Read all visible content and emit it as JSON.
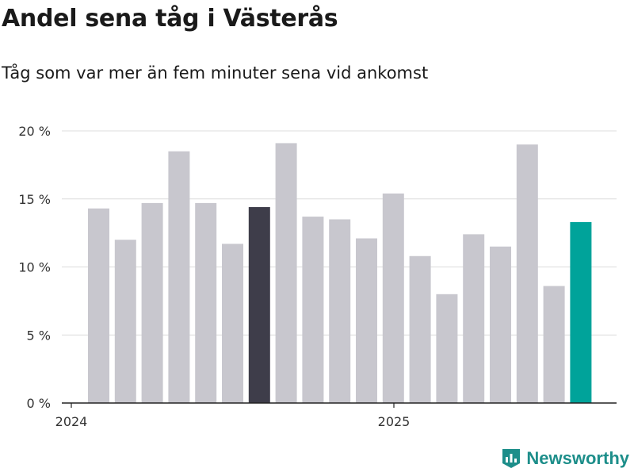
{
  "header": {
    "title": "Andel sena tåg i Västerås",
    "subtitle": "Tåg som var mer än fem minuter sena vid ankomst"
  },
  "brand": {
    "name": "Newsworthy",
    "icon": "newsworthy-logo-icon",
    "color": "#1d8e8a"
  },
  "chart_data": {
    "type": "bar",
    "title": "Andel sena tåg i Västerås",
    "subtitle": "Tåg som var mer än fem minuter sena vid ankomst",
    "x_tick_labels": [
      "2024",
      "2025"
    ],
    "y_ticks": [
      0,
      5,
      10,
      15,
      20
    ],
    "y_tick_labels": [
      "0 %",
      "5 %",
      "10 %",
      "15 %",
      "20 %"
    ],
    "ylim": [
      0,
      20
    ],
    "grid": true,
    "categories": [
      "2024-01",
      "2024-02",
      "2024-03",
      "2024-04",
      "2024-05",
      "2024-06",
      "2024-07",
      "2024-08",
      "2024-09",
      "2024-10",
      "2024-11",
      "2024-12",
      "2025-01",
      "2025-02",
      "2025-03",
      "2025-04",
      "2025-05",
      "2025-06",
      "2025-07"
    ],
    "values": [
      14.3,
      12.0,
      14.7,
      18.5,
      14.7,
      11.7,
      14.4,
      19.1,
      13.7,
      13.5,
      12.1,
      15.4,
      10.8,
      8.0,
      12.4,
      11.5,
      19.0,
      8.6,
      13.3
    ],
    "colors": {
      "default": "#c8c7ce",
      "highlight_same_month_last_year": "#3e3d4a",
      "latest": "#00a39a"
    },
    "highlight_index": 6,
    "latest_index": 18
  }
}
